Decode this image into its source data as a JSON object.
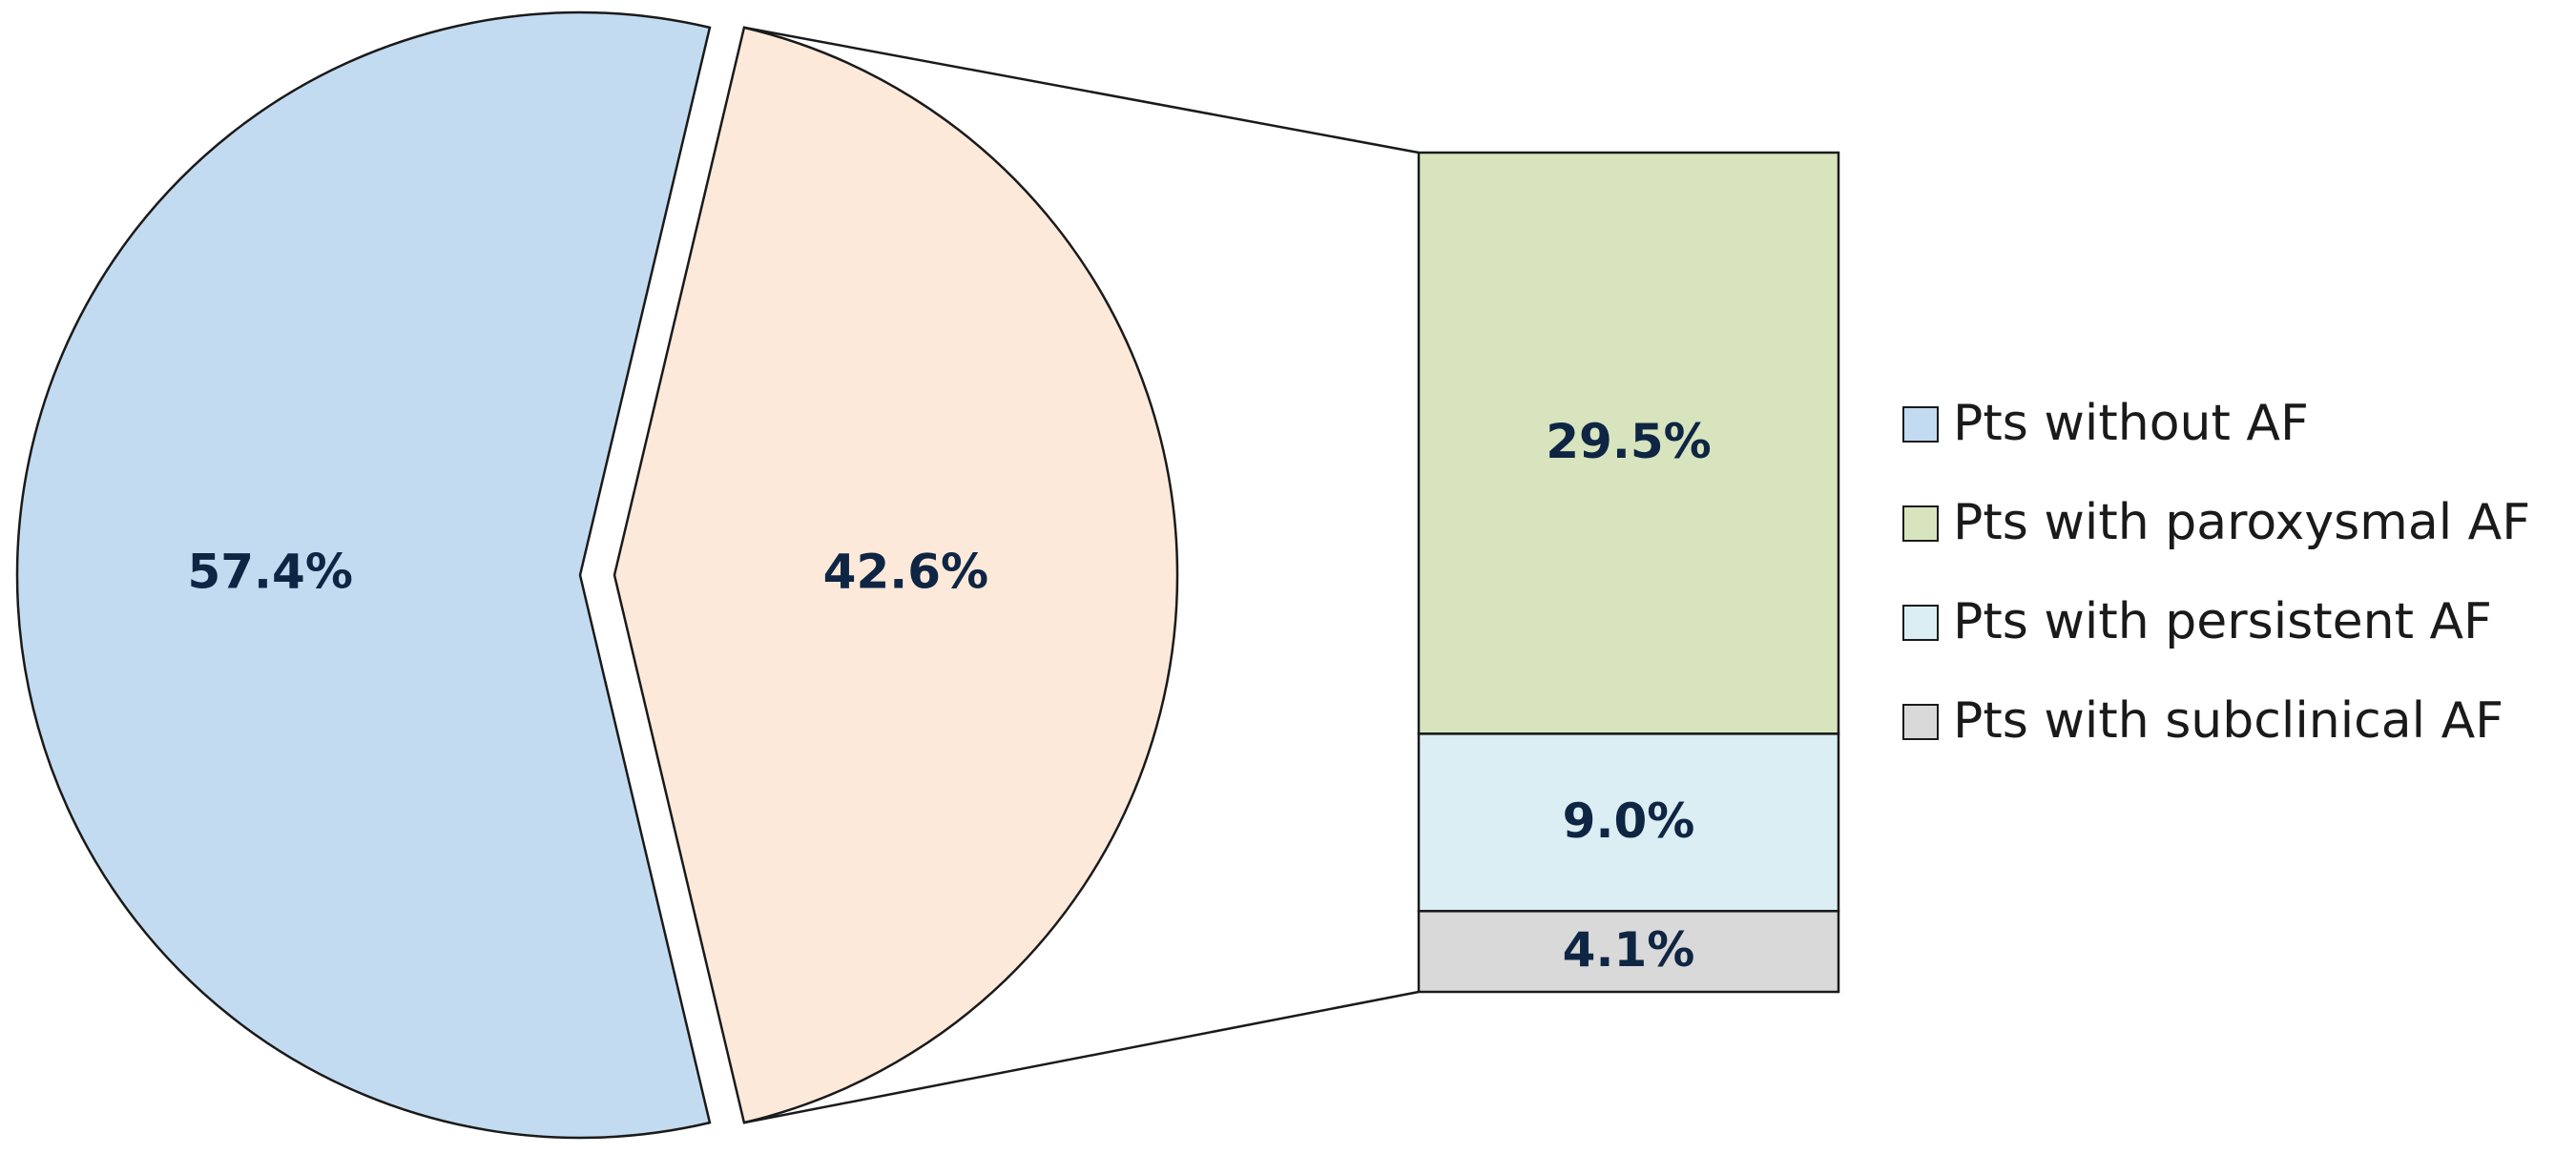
{
  "chart_data": {
    "type": "pie",
    "subtype": "bar-of-pie",
    "pie": {
      "slices": [
        {
          "key": "without",
          "value": 57.4,
          "label": "57.4%",
          "color": "#c3dbf1"
        },
        {
          "key": "with_af",
          "value": 42.6,
          "label": "42.6%",
          "color": "#fde9d9"
        }
      ]
    },
    "bar": {
      "segments": [
        {
          "key": "paroxysmal",
          "value": 29.5,
          "label": "29.5%",
          "color": "#d7e4bd"
        },
        {
          "key": "persistent",
          "value": 9.0,
          "label": "9.0%",
          "color": "#daeef3"
        },
        {
          "key": "subclinical",
          "value": 4.1,
          "label": "4.1%",
          "color": "#d9d9d9"
        }
      ]
    },
    "legend": {
      "position": "right",
      "items": [
        {
          "label": "Pts without AF",
          "color": "#c3dbf1"
        },
        {
          "label": "Pts with paroxysmal AF",
          "color": "#d7e4bd"
        },
        {
          "label": "Pts with persistent AF",
          "color": "#daeef3"
        },
        {
          "label": "Pts with subclinical AF",
          "color": "#d9d9d9"
        }
      ]
    },
    "colors": {
      "outline": "#1a1a1a",
      "label_text": "#0f2544"
    }
  }
}
